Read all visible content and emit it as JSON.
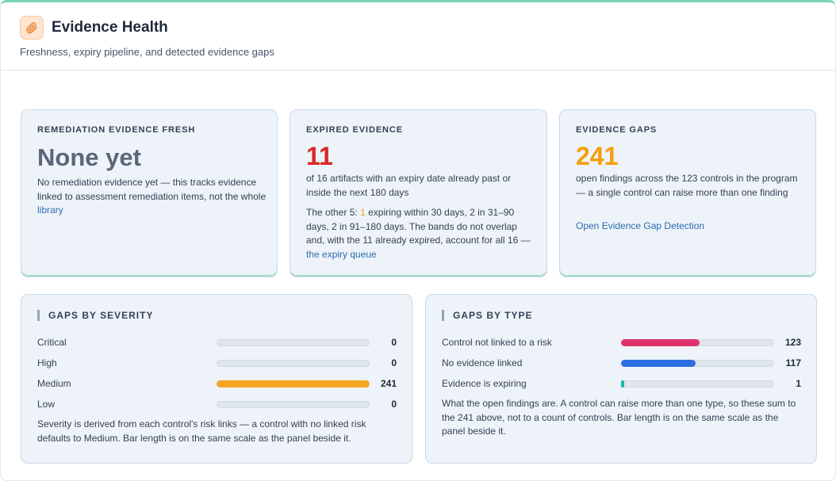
{
  "header": {
    "title": "Evidence Health",
    "subtitle": "Freshness, expiry pipeline, and detected evidence gaps",
    "icon": "paperclip-icon",
    "accent": "#e8873a"
  },
  "cards": {
    "remediation": {
      "label": "REMEDIATION EVIDENCE FRESH",
      "value": "None yet",
      "desc": "No remediation evidence yet — this tracks evidence linked to assessment remediation items, not the whole",
      "link": "library",
      "color": "#5a6778"
    },
    "expired": {
      "label": "EXPIRED EVIDENCE",
      "value": "11",
      "desc": "of 16 artifacts with an expiry date already past or inside the next 180 days",
      "note_pre": "The other 5:",
      "note_highlight": "1",
      "note_post": "expiring within 30 days, 2 in 31–90 days, 2 in 91–180 days. The bands do not overlap and, with the 11 already expired, account for all 16 —",
      "link": "the expiry queue",
      "color": "#dc2626"
    },
    "gaps": {
      "label": "EVIDENCE GAPS",
      "value": "241",
      "desc": "open findings across the 123 controls in the program — a single control can raise more than one finding",
      "link": "Open Evidence Gap Detection",
      "color": "#f59e0b"
    }
  },
  "severity": {
    "title": "GAPS BY SEVERITY",
    "scale_max": 241,
    "rows": [
      {
        "label": "Critical",
        "value": 0,
        "color": "#f5a623"
      },
      {
        "label": "High",
        "value": 0,
        "color": "#f5a623"
      },
      {
        "label": "Medium",
        "value": 241,
        "color": "#f5a623"
      },
      {
        "label": "Low",
        "value": 0,
        "color": "#f5a623"
      }
    ],
    "footnote": "Severity is derived from each control's risk links — a control with no linked risk defaults to Medium. Bar length is on the same scale as the panel beside it."
  },
  "types": {
    "title": "GAPS BY TYPE",
    "scale_max": 241,
    "rows": [
      {
        "label": "Control not linked to a risk",
        "value": 123,
        "color": "#e0336e"
      },
      {
        "label": "No evidence linked",
        "value": 117,
        "color": "#2e6fe0"
      },
      {
        "label": "Evidence is expiring",
        "value": 1,
        "color": "#14b8a6"
      }
    ],
    "footnote": "What the open findings are. A control can raise more than one type, so these sum to the 241 above, not to a count of controls. Bar length is on the same scale as the panel beside it."
  }
}
